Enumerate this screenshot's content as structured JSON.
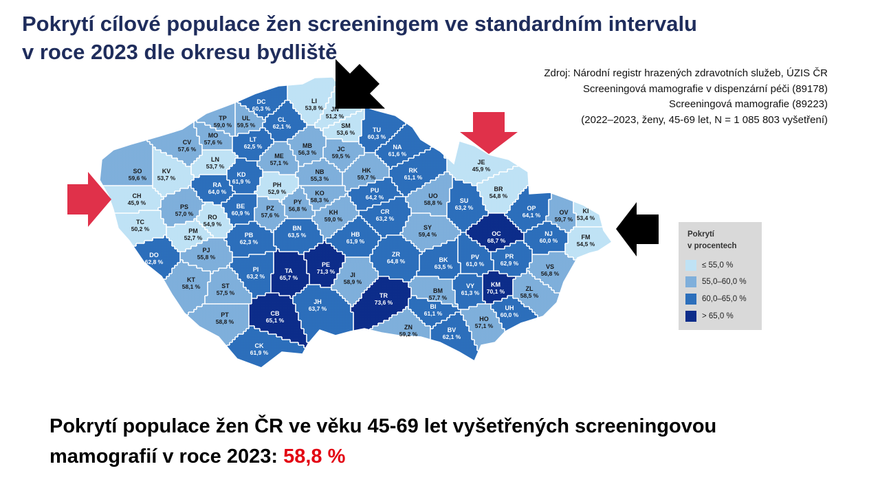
{
  "title": {
    "line1": "Pokrytí cílové populace žen screeningem ve standardním intervalu",
    "line2": "v roce 2023 dle okresu bydliště"
  },
  "source": {
    "line1": "Zdroj: Národní registr hrazených zdravotních služeb, ÚZIS ČR",
    "line2": "Screeningová mamografie v dispenzární péči (89178)",
    "line3": "Screeningová mamografie (89223)",
    "line4": "(2022–2023, ženy, 45-69 let, N = 1 085 803 vyšetření)"
  },
  "legend": {
    "title_line1": "Pokrytí",
    "title_line2": "v procentech",
    "items": [
      {
        "label": "≤ 55,0 %",
        "color": "#bfe2f5"
      },
      {
        "label": "55,0–60,0 %",
        "color": "#7fafdb"
      },
      {
        "label": "60,0–65,0 %",
        "color": "#2c6fbb"
      },
      {
        "label": "> 65,0 %",
        "color": "#0d2d8a"
      }
    ]
  },
  "colors": {
    "class1": "#bfe2f5",
    "class2": "#7fafdb",
    "class3": "#2c6fbb",
    "class4": "#0d2d8a",
    "border": "#ffffff",
    "red_arrow": "#e0314a",
    "black_arrow": "#000000",
    "total_value": "#e30613"
  },
  "map_data": {
    "districts": [
      {
        "code": "DC",
        "value": "60,3 %",
        "class": 3
      },
      {
        "code": "UL",
        "value": "59,5 %",
        "class": 2
      },
      {
        "code": "LI",
        "value": "53,8 %",
        "class": 1
      },
      {
        "code": "JN",
        "value": "51,2 %",
        "class": 1
      },
      {
        "code": "SM",
        "value": "53,6 %",
        "class": 1
      },
      {
        "code": "TP",
        "value": "59,0 %",
        "class": 2
      },
      {
        "code": "MO",
        "value": "57,6 %",
        "class": 2
      },
      {
        "code": "CL",
        "value": "62,1 %",
        "class": 3
      },
      {
        "code": "TU",
        "value": "60,3 %",
        "class": 3
      },
      {
        "code": "CV",
        "value": "57,6 %",
        "class": 2
      },
      {
        "code": "LT",
        "value": "62,5 %",
        "class": 3
      },
      {
        "code": "MB",
        "value": "56,3 %",
        "class": 2
      },
      {
        "code": "JC",
        "value": "59,5 %",
        "class": 2
      },
      {
        "code": "NA",
        "value": "61,6 %",
        "class": 3
      },
      {
        "code": "ME",
        "value": "57,1 %",
        "class": 2
      },
      {
        "code": "LN",
        "value": "53,7 %",
        "class": 1
      },
      {
        "code": "SO",
        "value": "59,6 %",
        "class": 2
      },
      {
        "code": "KV",
        "value": "53,7 %",
        "class": 1
      },
      {
        "code": "KD",
        "value": "61,9 %",
        "class": 3
      },
      {
        "code": "NB",
        "value": "55,3 %",
        "class": 2
      },
      {
        "code": "HK",
        "value": "59,7 %",
        "class": 2
      },
      {
        "code": "RK",
        "value": "61,1 %",
        "class": 3
      },
      {
        "code": "JE",
        "value": "45,9 %",
        "class": 1
      },
      {
        "code": "RA",
        "value": "64,0 %",
        "class": 3
      },
      {
        "code": "PH",
        "value": "52,9 %",
        "class": 1
      },
      {
        "code": "KO",
        "value": "58,3 %",
        "class": 2
      },
      {
        "code": "PU",
        "value": "64,2 %",
        "class": 3
      },
      {
        "code": "UO",
        "value": "58,8 %",
        "class": 2
      },
      {
        "code": "BR",
        "value": "54,8 %",
        "class": 1
      },
      {
        "code": "CH",
        "value": "45,9 %",
        "class": 1
      },
      {
        "code": "PS",
        "value": "57,0 %",
        "class": 2
      },
      {
        "code": "BE",
        "value": "60,9 %",
        "class": 3
      },
      {
        "code": "PY",
        "value": "56,8 %",
        "class": 2
      },
      {
        "code": "SU",
        "value": "63,2 %",
        "class": 3
      },
      {
        "code": "KH",
        "value": "59,0 %",
        "class": 2
      },
      {
        "code": "CR",
        "value": "63,2 %",
        "class": 3
      },
      {
        "code": "OP",
        "value": "64,1 %",
        "class": 3
      },
      {
        "code": "OV",
        "value": "59,7 %",
        "class": 2
      },
      {
        "code": "KI",
        "value": "53,4 %",
        "class": 1
      },
      {
        "code": "RO",
        "value": "54,9 %",
        "class": 1
      },
      {
        "code": "PZ",
        "value": "57,6 %",
        "class": 2
      },
      {
        "code": "TC",
        "value": "50,2 %",
        "class": 1
      },
      {
        "code": "BN",
        "value": "63,5 %",
        "class": 3
      },
      {
        "code": "SY",
        "value": "59,4 %",
        "class": 2
      },
      {
        "code": "OC",
        "value": "68,7 %",
        "class": 4
      },
      {
        "code": "NJ",
        "value": "60,0 %",
        "class": 3
      },
      {
        "code": "FM",
        "value": "54,5 %",
        "class": 1
      },
      {
        "code": "PM",
        "value": "52,7 %",
        "class": 1
      },
      {
        "code": "PB",
        "value": "62,3 %",
        "class": 3
      },
      {
        "code": "HB",
        "value": "61,9 %",
        "class": 3
      },
      {
        "code": "PJ",
        "value": "55,8 %",
        "class": 2
      },
      {
        "code": "DO",
        "value": "62,8 %",
        "class": 3
      },
      {
        "code": "ZR",
        "value": "64,8 %",
        "class": 3
      },
      {
        "code": "PV",
        "value": "61,0 %",
        "class": 3
      },
      {
        "code": "PR",
        "value": "62,9 %",
        "class": 3
      },
      {
        "code": "PE",
        "value": "71,3 %",
        "class": 4
      },
      {
        "code": "TA",
        "value": "65,7 %",
        "class": 4
      },
      {
        "code": "PI",
        "value": "63,2 %",
        "class": 3
      },
      {
        "code": "BK",
        "value": "63,5 %",
        "class": 3
      },
      {
        "code": "VS",
        "value": "56,8 %",
        "class": 2
      },
      {
        "code": "KT",
        "value": "58,1 %",
        "class": 2
      },
      {
        "code": "JI",
        "value": "58,9 %",
        "class": 2
      },
      {
        "code": "BM",
        "value": "57,7 %",
        "class": 2
      },
      {
        "code": "KM",
        "value": "70,1 %",
        "class": 4
      },
      {
        "code": "ST",
        "value": "57,5 %",
        "class": 2
      },
      {
        "code": "TR",
        "value": "73,6 %",
        "class": 4
      },
      {
        "code": "VY",
        "value": "61,3 %",
        "class": 3
      },
      {
        "code": "ZL",
        "value": "58,5 %",
        "class": 2
      },
      {
        "code": "JH",
        "value": "63,7 %",
        "class": 3
      },
      {
        "code": "BI",
        "value": "61,1 %",
        "class": 3
      },
      {
        "code": "UH",
        "value": "60,0 %",
        "class": 3
      },
      {
        "code": "PT",
        "value": "58,8 %",
        "class": 2
      },
      {
        "code": "CB",
        "value": "65,1 %",
        "class": 4
      },
      {
        "code": "HO",
        "value": "57,1 %",
        "class": 2
      },
      {
        "code": "ZN",
        "value": "59,2 %",
        "class": 2
      },
      {
        "code": "BV",
        "value": "62,1 %",
        "class": 3
      },
      {
        "code": "CK",
        "value": "61,9 %",
        "class": 3
      }
    ]
  },
  "summary": {
    "line1": "Pokrytí populace žen ČR ve věku 45-69 let vyšetřených screeningovou",
    "line2_prefix": "mamografií v roce 2023: ",
    "total_value": "58,8 %"
  }
}
